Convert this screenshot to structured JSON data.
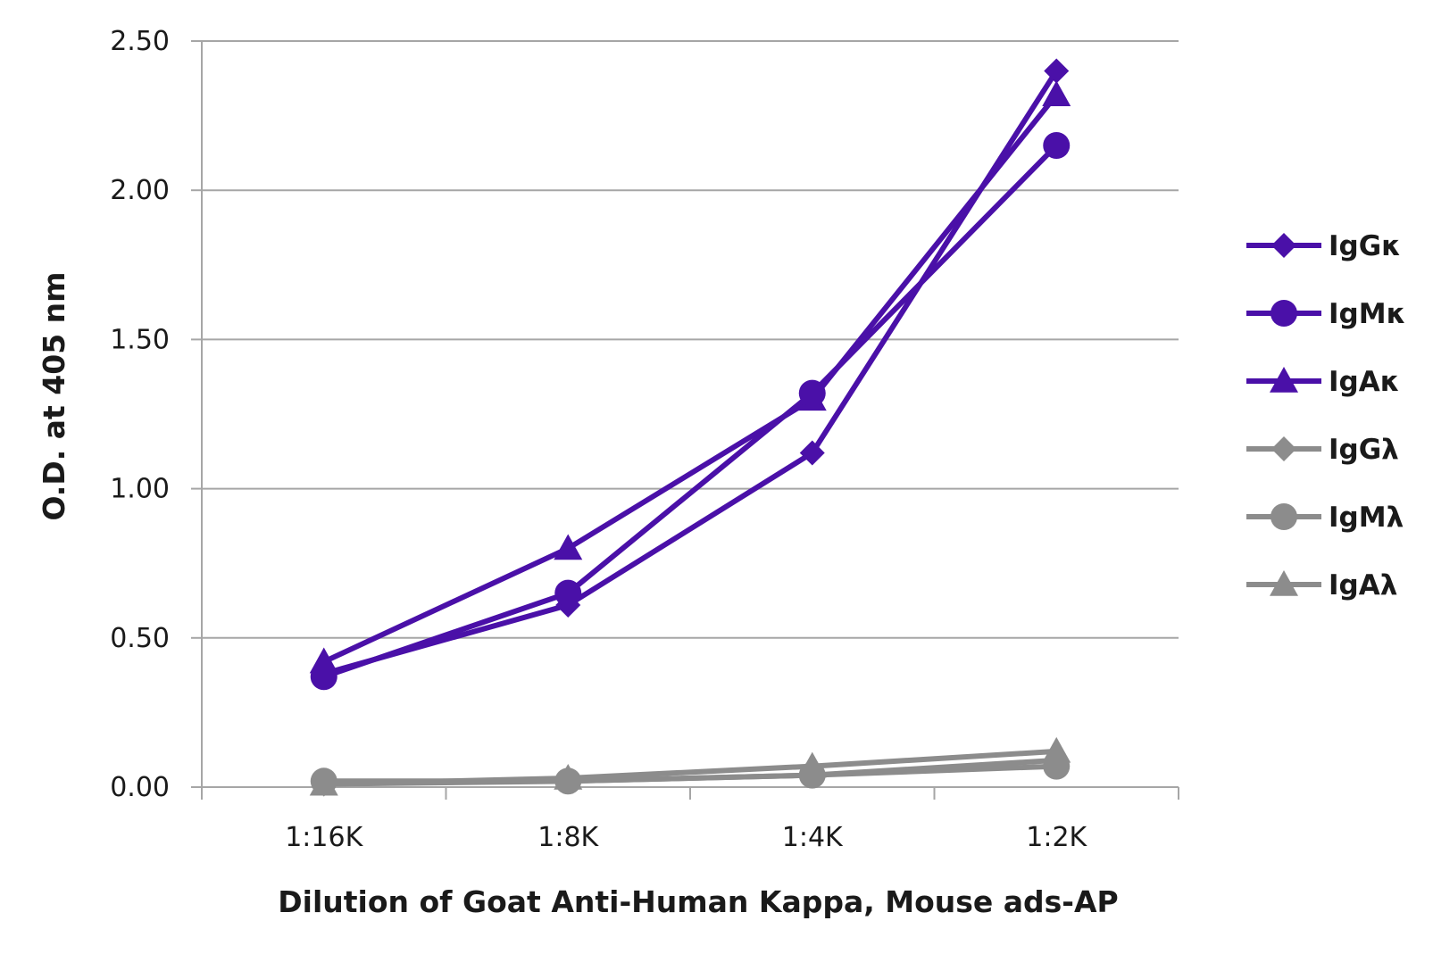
{
  "chart_data": {
    "type": "line",
    "xlabel": "Dilution of Goat Anti-Human Kappa, Mouse ads-AP",
    "ylabel": "O.D. at 405 nm",
    "categories": [
      "1:16K",
      "1:8K",
      "1:4K",
      "1:2K"
    ],
    "ylim": [
      0,
      2.5
    ],
    "yticks": [
      "0.00",
      "0.50",
      "1.00",
      "1.50",
      "2.00",
      "2.50"
    ],
    "grid": true,
    "legend_position": "right",
    "series": [
      {
        "name": "IgGκ",
        "marker": "diamond",
        "color": "#4a10a8",
        "values": [
          0.38,
          0.61,
          1.12,
          2.4
        ]
      },
      {
        "name": "IgMκ",
        "marker": "circle",
        "color": "#4a10a8",
        "values": [
          0.37,
          0.65,
          1.32,
          2.15
        ]
      },
      {
        "name": "IgAκ",
        "marker": "triangle",
        "color": "#4a10a8",
        "values": [
          0.42,
          0.8,
          1.3,
          2.32
        ]
      },
      {
        "name": "IgGλ",
        "marker": "diamond",
        "color": "#8c8c8c",
        "values": [
          0.01,
          0.02,
          0.04,
          0.09
        ]
      },
      {
        "name": "IgMλ",
        "marker": "circle",
        "color": "#8c8c8c",
        "values": [
          0.02,
          0.02,
          0.04,
          0.07
        ]
      },
      {
        "name": "IgAλ",
        "marker": "triangle",
        "color": "#8c8c8c",
        "values": [
          0.01,
          0.03,
          0.07,
          0.12
        ]
      }
    ]
  }
}
